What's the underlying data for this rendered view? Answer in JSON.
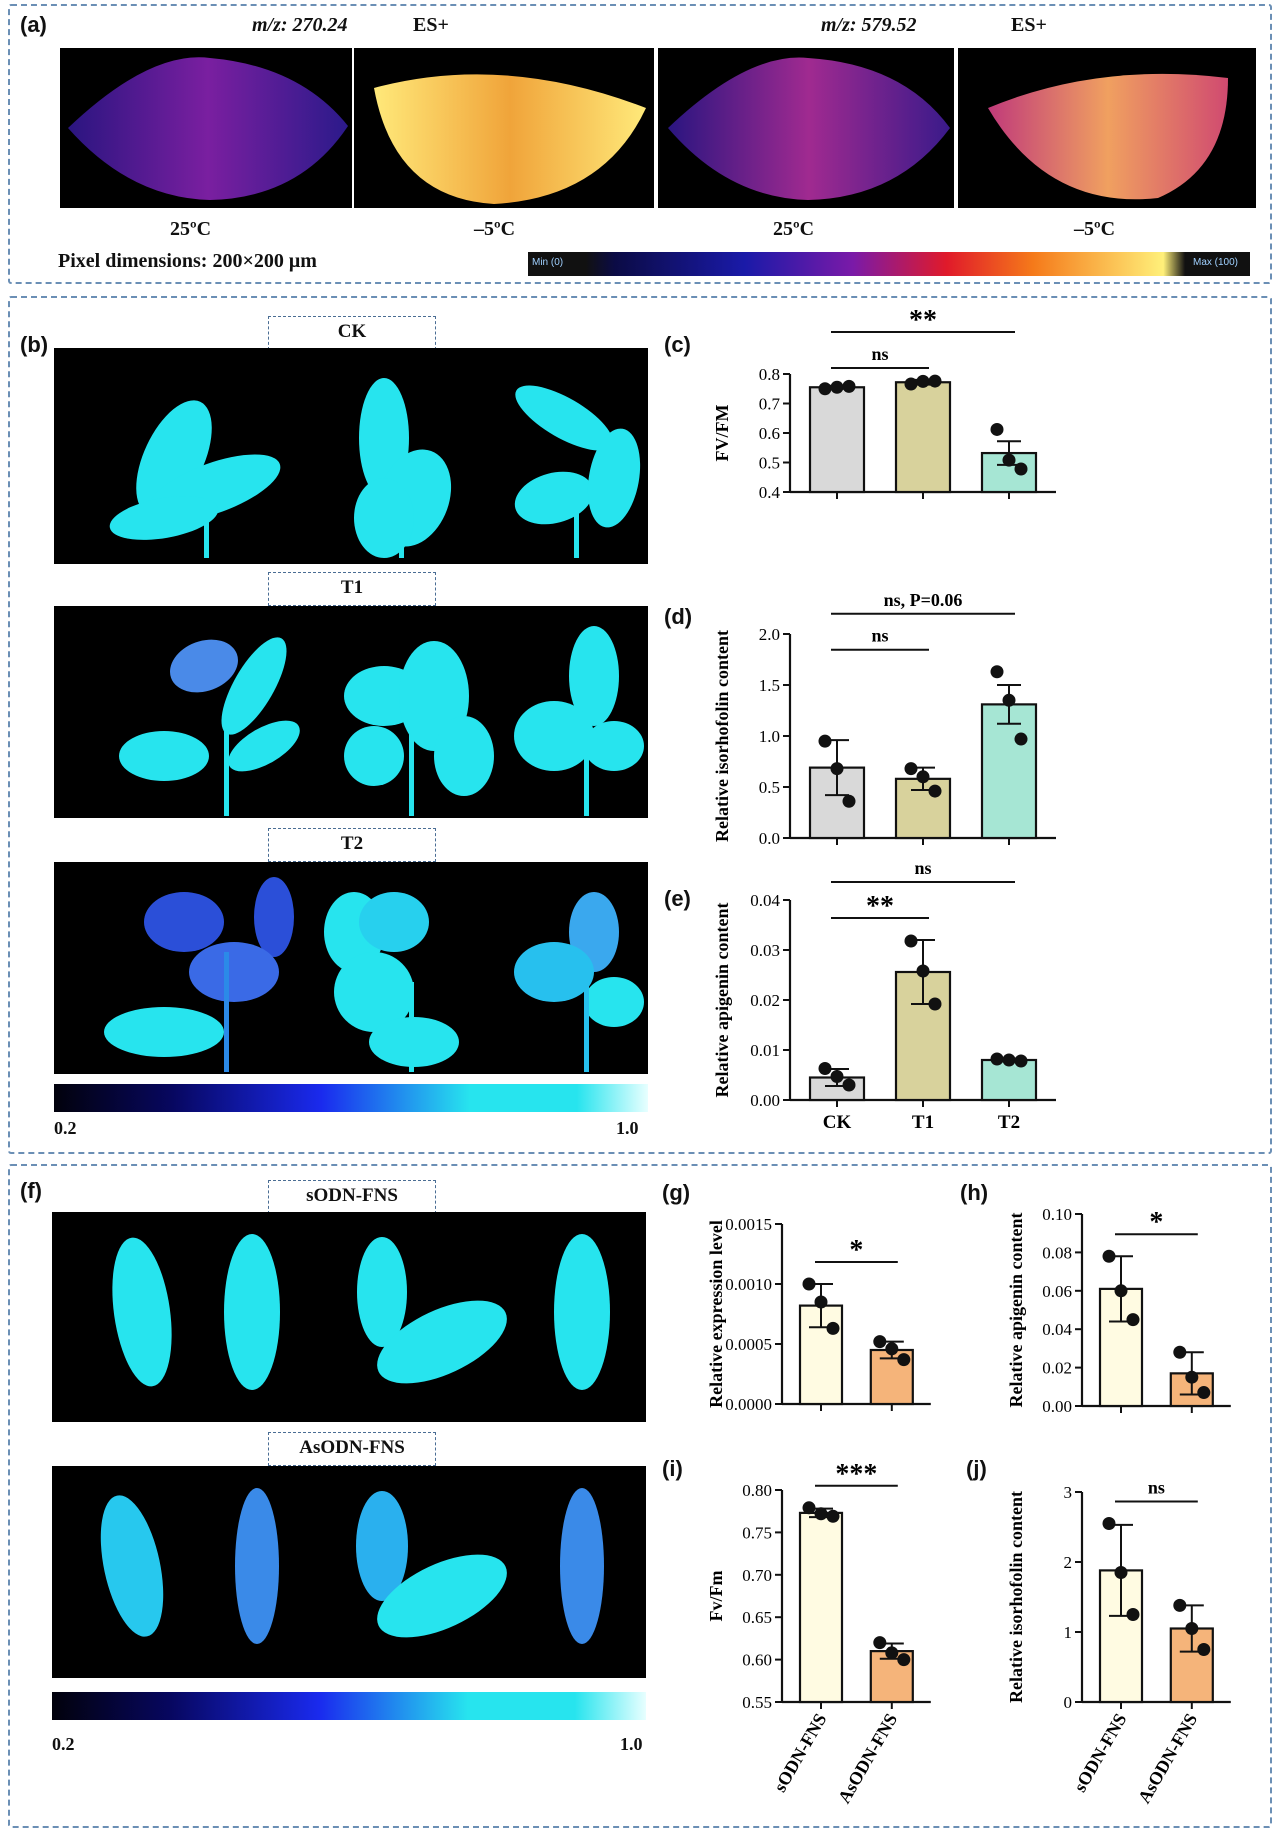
{
  "panels": {
    "a": {
      "label": "(a)",
      "mz1": "m/z: 270.24",
      "es1": "ES+",
      "mz2": "m/z: 579.52",
      "es2": "ES+",
      "temps": [
        "25ºC",
        "–5ºC",
        "25ºC",
        "–5ºC"
      ],
      "pixel_note": "Pixel dimensions: 200×200 μm",
      "scale_min": "Min (0)",
      "scale_max": "Max (100)"
    },
    "b": {
      "label": "(b)",
      "groups": [
        "CK",
        "T1",
        "T2"
      ],
      "scale_min": "0.2",
      "scale_max": "1.0"
    },
    "f": {
      "label": "(f)",
      "groups": [
        "sODN-FNS",
        "AsODN-FNS"
      ],
      "scale_min": "0.2",
      "scale_max": "1.0"
    },
    "c_label": "(c)",
    "d_label": "(d)",
    "e_label": "(e)",
    "g_label": "(g)",
    "h_label": "(h)",
    "i_label": "(i)",
    "j_label": "(j)"
  },
  "colors": {
    "frame": "#6b8fb5",
    "ck": "#d9d9d9",
    "t1": "#d8d29c",
    "t2": "#a6e6d4",
    "sodn": "#fffbe2",
    "asodn": "#f5b47a",
    "leaf": "#27e4ee",
    "leaf_dark": "#1d3fd6"
  },
  "chart_data": [
    {
      "id": "c",
      "type": "bar",
      "categories": [
        "CK",
        "T1",
        "T2"
      ],
      "values": [
        0.755,
        0.772,
        0.532
      ],
      "errors": [
        0.005,
        0.008,
        0.04
      ],
      "points": [
        [
          0.75,
          0.755,
          0.758
        ],
        [
          0.766,
          0.775,
          0.776
        ],
        [
          0.612,
          0.508,
          0.478
        ]
      ],
      "ylabel": "FV/FM",
      "ylim": [
        0.4,
        0.8
      ],
      "yticks": [
        "0.4",
        "0.5",
        "0.6",
        "0.7",
        "0.8"
      ],
      "show_xticks": false,
      "annotations": [
        {
          "text": "ns",
          "from": 0,
          "to": 1
        },
        {
          "text": "**",
          "from": 0,
          "to": 2
        }
      ]
    },
    {
      "id": "d",
      "type": "bar",
      "categories": [
        "CK",
        "T1",
        "T2"
      ],
      "values": [
        0.69,
        0.58,
        1.31
      ],
      "errors": [
        0.27,
        0.11,
        0.19
      ],
      "points": [
        [
          0.95,
          0.68,
          0.36
        ],
        [
          0.68,
          0.6,
          0.46
        ],
        [
          1.63,
          1.35,
          0.97
        ]
      ],
      "ylabel": "Relative isorhofolin content",
      "ylim": [
        0,
        2.0
      ],
      "yticks": [
        "0.0",
        "0.5",
        "1.0",
        "1.5",
        "2.0"
      ],
      "show_xticks": false,
      "annotations": [
        {
          "text": "ns",
          "from": 0,
          "to": 1
        },
        {
          "text": "ns, P=0.06",
          "from": 0,
          "to": 2
        }
      ]
    },
    {
      "id": "e",
      "type": "bar",
      "categories": [
        "CK",
        "T1",
        "T2"
      ],
      "values": [
        0.0045,
        0.0256,
        0.008
      ],
      "errors": [
        0.0017,
        0.0064,
        0.0003
      ],
      "points": [
        [
          0.0063,
          0.0047,
          0.003
        ],
        [
          0.0318,
          0.0258,
          0.0192
        ],
        [
          0.0082,
          0.008,
          0.0078
        ]
      ],
      "ylabel": "Relative apigenin content",
      "ylim": [
        0,
        0.04
      ],
      "yticks": [
        "0.00",
        "0.01",
        "0.02",
        "0.03",
        "0.04"
      ],
      "show_xticks": true,
      "annotations": [
        {
          "text": "**",
          "from": 0,
          "to": 1
        },
        {
          "text": "ns",
          "from": 0,
          "to": 2
        }
      ]
    },
    {
      "id": "g",
      "type": "bar",
      "categories": [
        "sODN-FNS",
        "AsODN-FNS"
      ],
      "values": [
        0.00082,
        0.00045
      ],
      "errors": [
        0.00018,
        7e-05
      ],
      "points": [
        [
          0.001,
          0.00085,
          0.00063
        ],
        [
          0.00052,
          0.00046,
          0.00037
        ]
      ],
      "ylabel": "Relative expression level",
      "ylim": [
        0,
        0.0015
      ],
      "yticks": [
        "0.0000",
        "0.0005",
        "0.0010",
        "0.0015"
      ],
      "show_xticks": false,
      "annotations": [
        {
          "text": "*",
          "from": 0,
          "to": 1
        }
      ]
    },
    {
      "id": "h",
      "type": "bar",
      "categories": [
        "sODN-FNS",
        "AsODN-FNS"
      ],
      "values": [
        0.061,
        0.017
      ],
      "errors": [
        0.017,
        0.011
      ],
      "points": [
        [
          0.078,
          0.06,
          0.045
        ],
        [
          0.028,
          0.015,
          0.007
        ]
      ],
      "ylabel": "Relative apigenin content",
      "ylim": [
        0,
        0.1
      ],
      "yticks": [
        "0.00",
        "0.02",
        "0.04",
        "0.06",
        "0.08",
        "0.10"
      ],
      "show_xticks": false,
      "annotations": [
        {
          "text": "*",
          "from": 0,
          "to": 1
        }
      ]
    },
    {
      "id": "i",
      "type": "bar",
      "categories": [
        "sODN-FNS",
        "AsODN-FNS"
      ],
      "values": [
        0.773,
        0.61
      ],
      "errors": [
        0.005,
        0.009
      ],
      "points": [
        [
          0.779,
          0.772,
          0.769
        ],
        [
          0.62,
          0.608,
          0.6
        ]
      ],
      "ylabel": "Fv/Fm",
      "ylim": [
        0.55,
        0.8
      ],
      "yticks": [
        "0.55",
        "0.60",
        "0.65",
        "0.70",
        "0.75",
        "0.80"
      ],
      "show_xticks": true,
      "annotations": [
        {
          "text": "***",
          "from": 0,
          "to": 1
        }
      ]
    },
    {
      "id": "j",
      "type": "bar",
      "categories": [
        "sODN-FNS",
        "AsODN-FNS"
      ],
      "values": [
        1.88,
        1.05
      ],
      "errors": [
        0.65,
        0.33
      ],
      "points": [
        [
          2.55,
          1.85,
          1.25
        ],
        [
          1.38,
          1.05,
          0.75
        ]
      ],
      "ylabel": "Relative isorhofolin content",
      "ylim": [
        0,
        3
      ],
      "yticks": [
        "0",
        "1",
        "2",
        "3"
      ],
      "show_xticks": true,
      "annotations": [
        {
          "text": "ns",
          "from": 0,
          "to": 1
        }
      ]
    }
  ]
}
